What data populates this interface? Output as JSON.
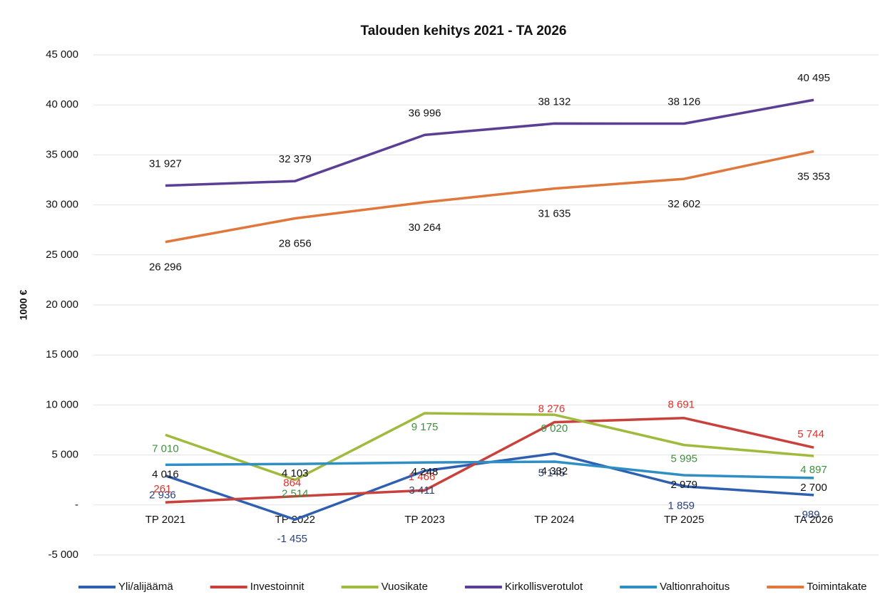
{
  "chart_data": {
    "type": "line",
    "title": "Talouden kehitys 2021 - TA 2026",
    "ylabel": "1000 €",
    "categories": [
      "TP 2021",
      "TP 2022",
      "TP 2023",
      "TP 2024",
      "TP 2025",
      "TA 2026"
    ],
    "ylim": [
      -5000,
      45000
    ],
    "yticks": [
      {
        "value": -5000,
        "label": "-5 000"
      },
      {
        "value": 0,
        "label": "-"
      },
      {
        "value": 5000,
        "label": "5 000"
      },
      {
        "value": 10000,
        "label": "10 000"
      },
      {
        "value": 15000,
        "label": "15 000"
      },
      {
        "value": 20000,
        "label": "20 000"
      },
      {
        "value": 25000,
        "label": "25 000"
      },
      {
        "value": 30000,
        "label": "30 000"
      },
      {
        "value": 35000,
        "label": "35 000"
      },
      {
        "value": 40000,
        "label": "40 000"
      },
      {
        "value": 45000,
        "label": "45 000"
      }
    ],
    "grid": true,
    "legend": "bottom",
    "series": [
      {
        "name": "Yli/alijäämä",
        "color": "#2e5fb0",
        "label_color": "#2a3f7a",
        "values": [
          2936,
          -1455,
          3411,
          5145,
          1859,
          989
        ],
        "value_labels": [
          "2 936",
          "-1 455",
          "3 411",
          "5 145",
          "1 859",
          "989"
        ]
      },
      {
        "name": "Investoinnit",
        "color": "#c9413c",
        "label_color": "#e0302a",
        "values": [
          261,
          864,
          1466,
          8276,
          8691,
          5744
        ],
        "value_labels": [
          "261",
          "864",
          "1 466",
          "8 276",
          "8 691",
          "5 744"
        ]
      },
      {
        "name": "Vuosikate",
        "color": "#9fba3c",
        "label_color": "#3f8f3f",
        "values": [
          7010,
          2514,
          9175,
          9020,
          5995,
          4897
        ],
        "value_labels": [
          "7 010",
          "2 514",
          "9 175",
          "9 020",
          "5 995",
          "4 897"
        ]
      },
      {
        "name": "Kirkollisverotulot",
        "color": "#5b3f94",
        "label_color": "#111111",
        "values": [
          31927,
          32379,
          36996,
          38132,
          38126,
          40495
        ],
        "value_labels": [
          "31 927",
          "32 379",
          "36 996",
          "38 132",
          "38 126",
          "40 495"
        ]
      },
      {
        "name": "Valtionrahoitus",
        "color": "#2f8fc4",
        "label_color": "#111111",
        "values": [
          4016,
          4103,
          4248,
          4332,
          2979,
          2700
        ],
        "value_labels": [
          "4 016",
          "4 103",
          "4 248",
          "4 332",
          "2 979",
          "2 700"
        ]
      },
      {
        "name": "Toimintakate",
        "color": "#e0773c",
        "label_color": "#111111",
        "values": [
          26296,
          28656,
          30264,
          31635,
          32602,
          35353
        ],
        "value_labels": [
          "26 296",
          "28 656",
          "30 264",
          "31 635",
          "32 602",
          "35 353"
        ]
      }
    ]
  }
}
